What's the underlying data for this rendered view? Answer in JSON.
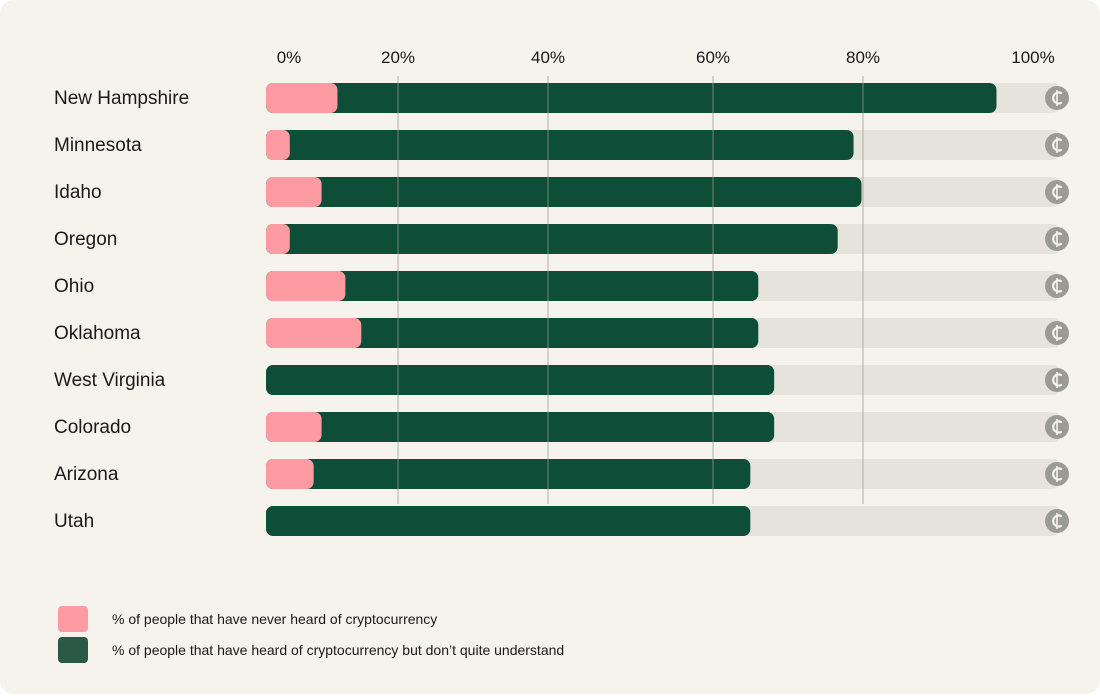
{
  "chart_data": {
    "type": "bar",
    "orientation": "horizontal",
    "stacked": true,
    "categories": [
      "New Hampshire",
      "Minnesota",
      "Idaho",
      "Oregon",
      "Ohio",
      "Oklahoma",
      "West Virginia",
      "Colorado",
      "Arizona",
      "Utah"
    ],
    "series": [
      {
        "name": "% of people that have never heard of cryptocurrency",
        "color": "#fd9aa2",
        "values": [
          9,
          3,
          7,
          3,
          10,
          12,
          0,
          7,
          6,
          0
        ]
      },
      {
        "name": "% of people that have heard of cryptocurrency but don’t quite understand",
        "color": "#0e4d37",
        "values": [
          83,
          71,
          68,
          69,
          52,
          50,
          64,
          57,
          55,
          61
        ]
      }
    ],
    "x_ticks": [
      0,
      20,
      40,
      60,
      80,
      100
    ],
    "x_tick_labels": [
      "0%",
      "20%",
      "40%",
      "60%",
      "80%",
      "100%"
    ],
    "xlim": [
      0,
      100
    ],
    "grid": true,
    "legend_position": "bottom-left",
    "end_icon": "crypto-coin-icon",
    "colors": {
      "track": "#e5e3dc",
      "grid": "#9a9a92",
      "icon": "#9b9b96",
      "text": "#1a1a1a",
      "legend_dark": "#2a5a45"
    }
  }
}
